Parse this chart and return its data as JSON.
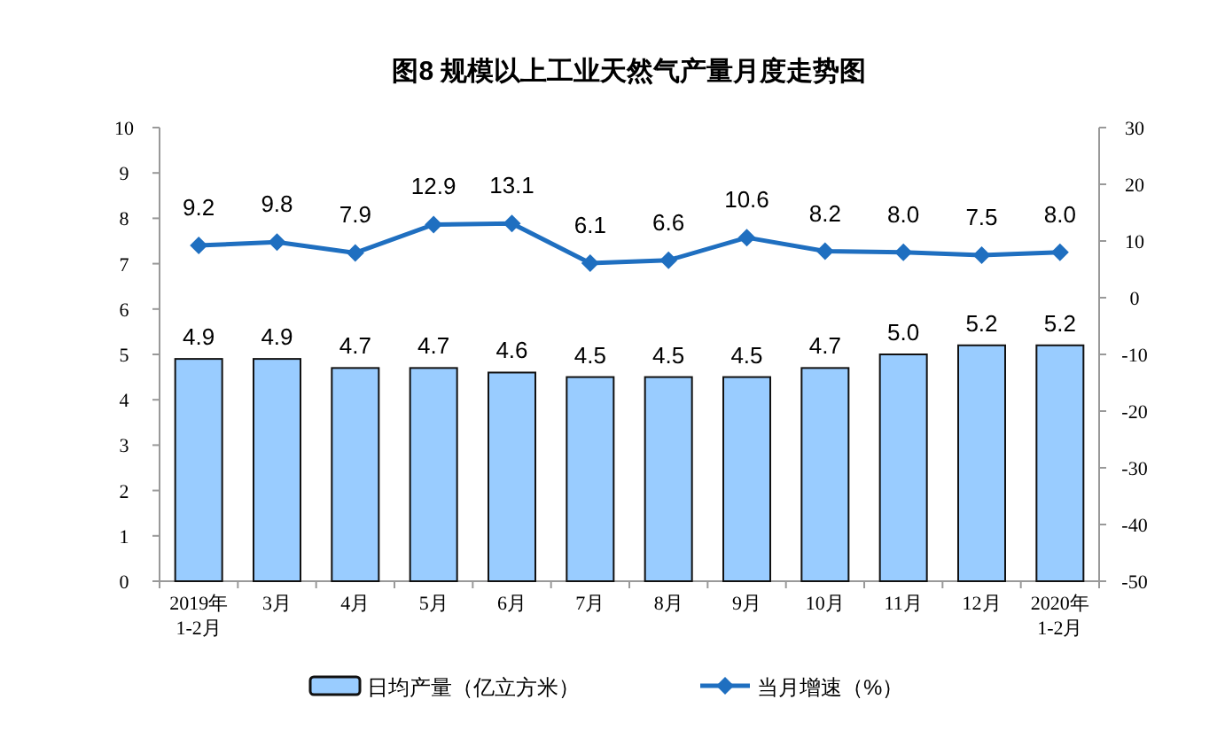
{
  "chart_data": {
    "type": "bar",
    "title": "图8  规模以上工业天然气产量月度走势图",
    "categories": [
      "2019年\n1-2月",
      "3月",
      "4月",
      "5月",
      "6月",
      "7月",
      "8月",
      "9月",
      "10月",
      "11月",
      "12月",
      "2020年\n1-2月"
    ],
    "series": [
      {
        "name": "日均产量（亿立方米）",
        "color": "#99ccff",
        "values": [
          4.9,
          4.9,
          4.7,
          4.7,
          4.6,
          4.5,
          4.5,
          4.5,
          4.7,
          5.0,
          5.2,
          5.2
        ],
        "value_labels": [
          "4.9",
          "4.9",
          "4.7",
          "4.7",
          "4.6",
          "4.5",
          "4.5",
          "4.5",
          "4.7",
          "5.0",
          "5.2",
          "5.2"
        ]
      },
      {
        "name": "当月增速（%）",
        "type": "line",
        "axis": "y2",
        "color": "#1f6fc0",
        "marker": "diamond",
        "values": [
          9.2,
          9.8,
          7.9,
          12.9,
          13.1,
          6.1,
          6.6,
          10.6,
          8.2,
          8.0,
          7.5,
          8.0
        ],
        "value_labels": [
          "9.2",
          "9.8",
          "7.9",
          "12.9",
          "13.1",
          "6.1",
          "6.6",
          "10.6",
          "8.2",
          "8.0",
          "7.5",
          "8.0"
        ]
      }
    ],
    "ylim": [
      0,
      10
    ],
    "yticks": [
      0,
      1,
      2,
      3,
      4,
      5,
      6,
      7,
      8,
      9,
      10
    ],
    "y2lim": [
      -50,
      30
    ],
    "y2ticks": [
      -50,
      -40,
      -30,
      -20,
      -10,
      0,
      10,
      20,
      30
    ],
    "legend": "bottom",
    "grid": false
  }
}
